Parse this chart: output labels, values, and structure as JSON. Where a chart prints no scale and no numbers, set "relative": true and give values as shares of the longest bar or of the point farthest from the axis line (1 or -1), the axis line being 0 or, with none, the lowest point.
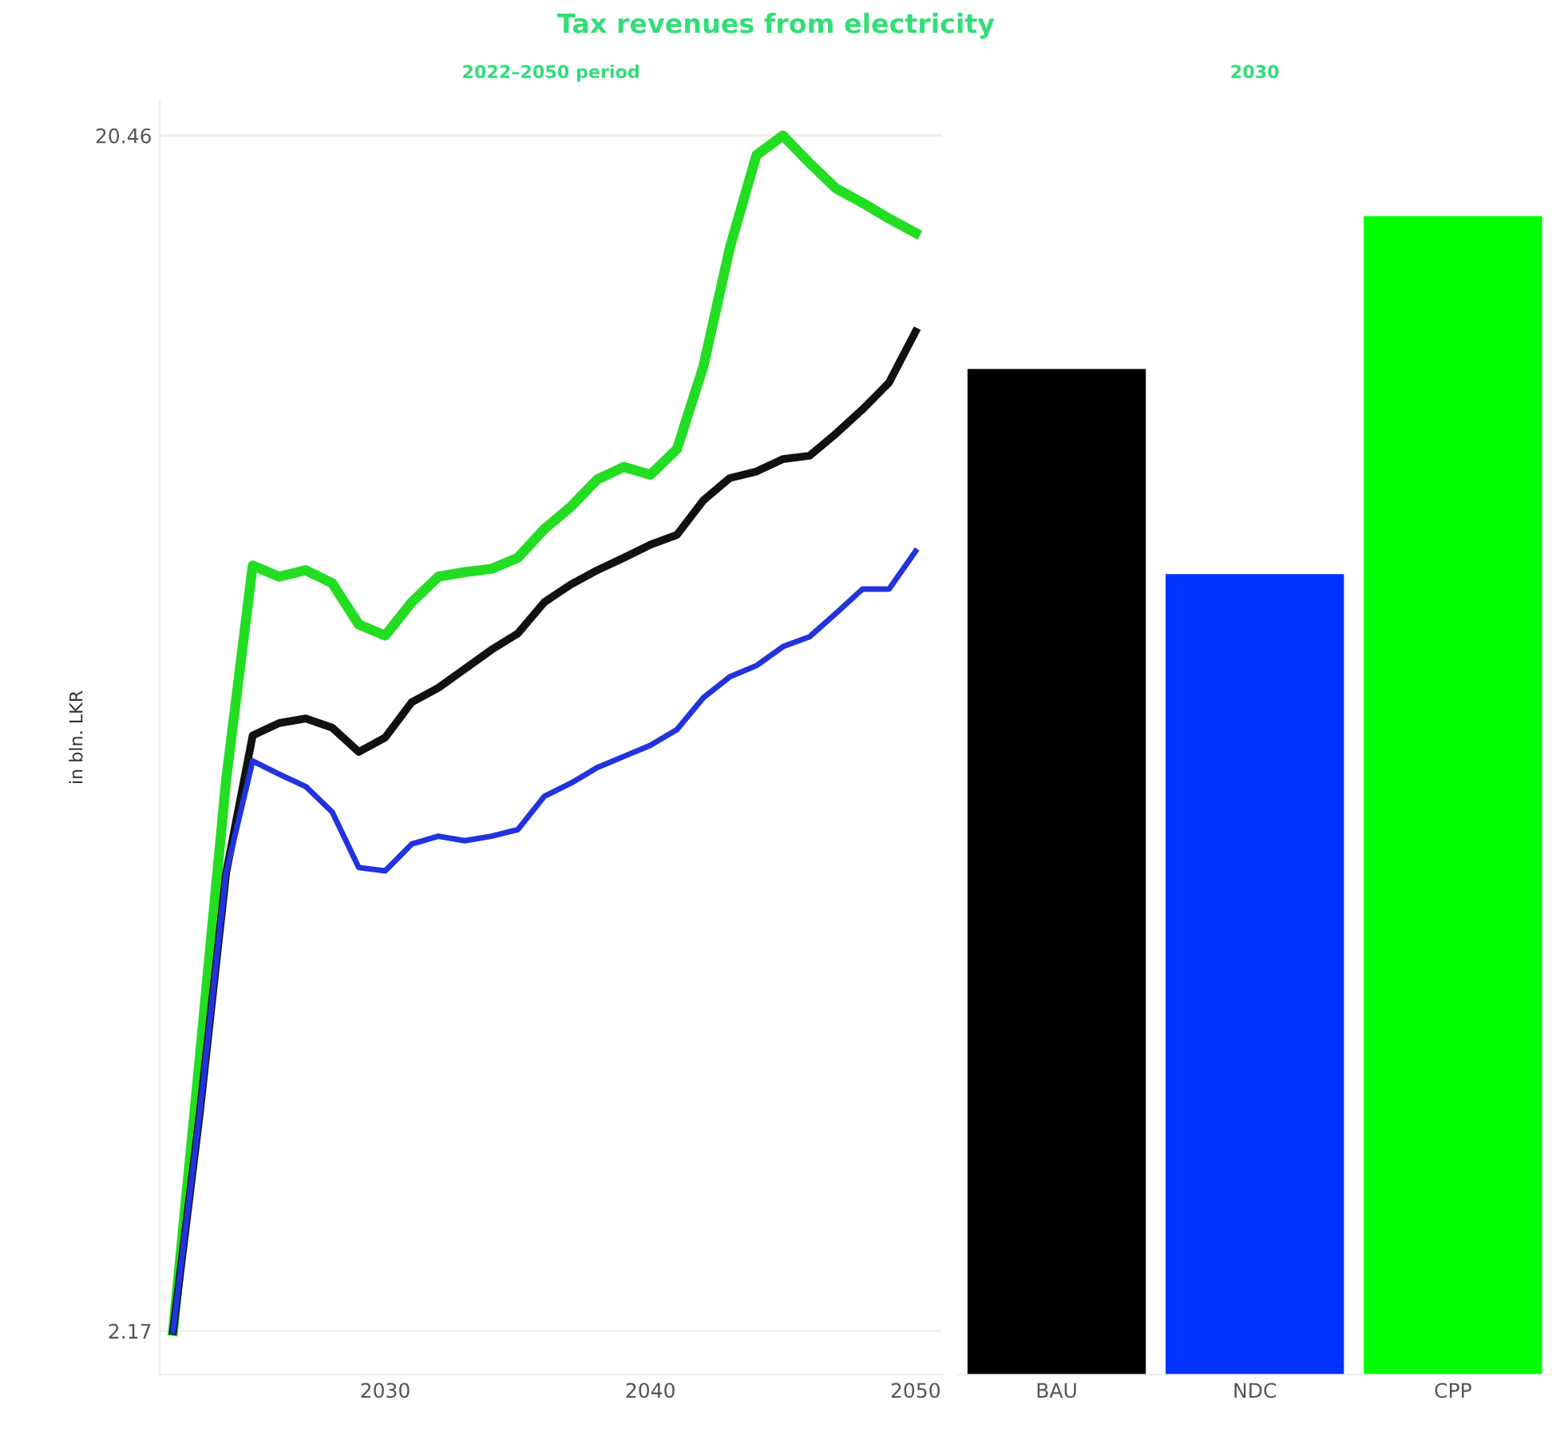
{
  "chart_data": [
    {
      "type": "line",
      "title": "Tax revenues from electricity",
      "subtitle": "2022–2050 period",
      "ylabel": "in bln. LKR",
      "x": [
        2022,
        2023,
        2024,
        2025,
        2026,
        2027,
        2028,
        2029,
        2030,
        2031,
        2032,
        2033,
        2034,
        2035,
        2036,
        2037,
        2038,
        2039,
        2040,
        2041,
        2042,
        2043,
        2044,
        2045,
        2046,
        2047,
        2048,
        2049,
        2050
      ],
      "series": [
        {
          "color": "#22dd22",
          "values": [
            2.17,
            6.33,
            10.6,
            13.88,
            13.71,
            13.81,
            13.61,
            12.98,
            12.81,
            13.32,
            13.71,
            13.78,
            13.83,
            14.0,
            14.44,
            14.78,
            15.2,
            15.39,
            15.27,
            15.66,
            16.93,
            18.75,
            20.16,
            20.46,
            20.04,
            19.65,
            19.43,
            19.19,
            18.97
          ]
        },
        {
          "color": "#111111",
          "values": [
            2.17,
            5.48,
            9.18,
            11.28,
            11.47,
            11.54,
            11.4,
            11.03,
            11.25,
            11.79,
            12.01,
            12.3,
            12.59,
            12.84,
            13.32,
            13.59,
            13.81,
            14.0,
            14.2,
            14.35,
            14.88,
            15.22,
            15.32,
            15.51,
            15.56,
            15.9,
            16.27,
            16.68,
            17.46
          ]
        },
        {
          "color": "#2233dd",
          "values": [
            2.17,
            5.48,
            9.18,
            10.89,
            10.69,
            10.5,
            10.11,
            9.26,
            9.21,
            9.62,
            9.74,
            9.67,
            9.74,
            9.84,
            10.35,
            10.55,
            10.79,
            10.96,
            11.13,
            11.37,
            11.86,
            12.18,
            12.35,
            12.64,
            12.79,
            13.15,
            13.52,
            13.52,
            14.1
          ]
        }
      ],
      "xlim": [
        2021.5,
        2051
      ],
      "ylim": [
        1.5,
        21
      ],
      "xticks": [
        2030,
        2040,
        2050
      ],
      "yticks": [
        2.17,
        20.46
      ],
      "grid": "y",
      "legend": false,
      "marker": "none",
      "line_style": "solid"
    },
    {
      "type": "bar",
      "title": "2030",
      "categories": [
        "BAU",
        "NDC",
        "CPP"
      ],
      "values": [
        0.868,
        0.691,
        1
      ],
      "colors": [
        "#000000",
        "#0033ff",
        "#00ff00"
      ],
      "relative": true,
      "legend": false
    }
  ]
}
